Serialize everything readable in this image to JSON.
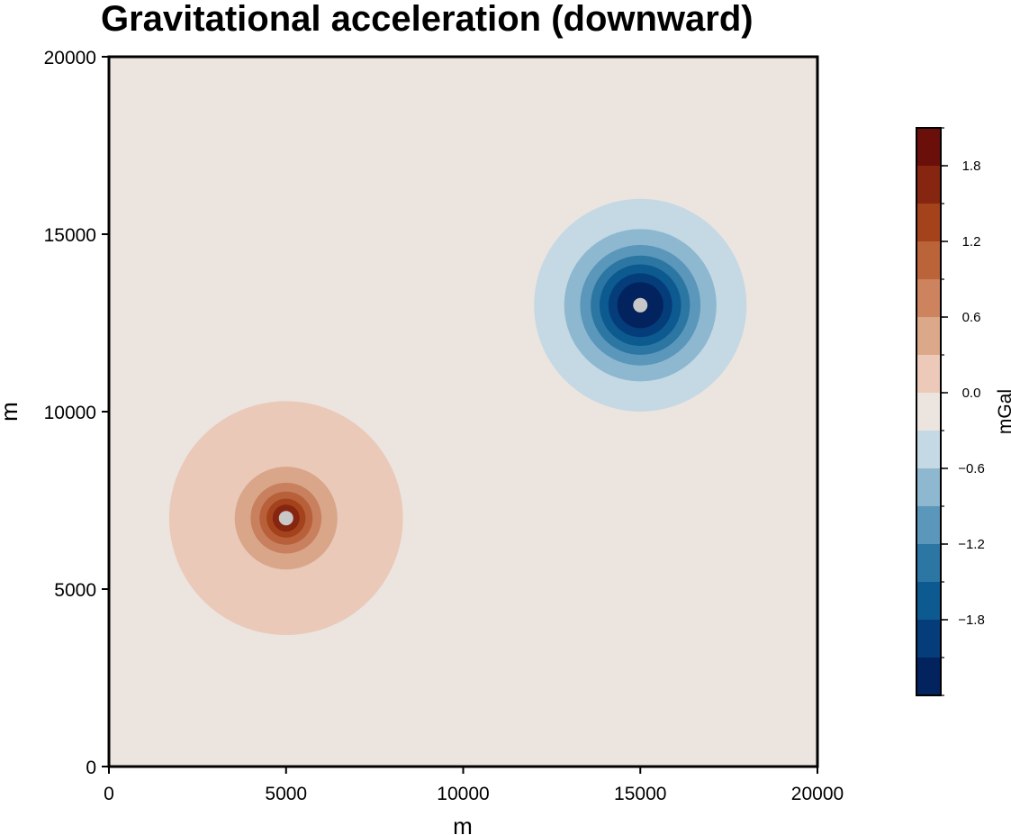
{
  "chart_data": {
    "type": "heatmap",
    "title": "Gravitational acceleration (downward)",
    "xlabel": "m",
    "ylabel": "m",
    "xlim": [
      0,
      20000
    ],
    "ylim": [
      0,
      20000
    ],
    "x_ticks": [
      0,
      5000,
      10000,
      15000,
      20000
    ],
    "y_ticks": [
      0,
      5000,
      10000,
      15000,
      20000
    ],
    "x_tick_labels": [
      "0",
      "5000",
      "10000",
      "15000",
      "20000"
    ],
    "y_tick_labels": [
      "0",
      "5000",
      "10000",
      "15000",
      "20000"
    ],
    "background_color": "#ece4df",
    "anomalies": [
      {
        "center": [
          5000,
          7000
        ],
        "sign": "positive",
        "peak_marker_color": "#c8c8c8",
        "contour_rings": [
          {
            "radius": 3300,
            "color": "#eac9b8"
          },
          {
            "radius": 1450,
            "color": "#d9a68a"
          },
          {
            "radius": 1000,
            "color": "#c8805e"
          },
          {
            "radius": 750,
            "color": "#b8603a"
          },
          {
            "radius": 550,
            "color": "#a4421c"
          },
          {
            "radius": 380,
            "color": "#862510"
          }
        ]
      },
      {
        "center": [
          15000,
          13000
        ],
        "sign": "negative",
        "peak_marker_color": "#c8c8c8",
        "contour_rings": [
          {
            "radius": 3000,
            "color": "#c4d9e4"
          },
          {
            "radius": 2150,
            "color": "#8eb8d0"
          },
          {
            "radius": 1700,
            "color": "#5a97ba"
          },
          {
            "radius": 1400,
            "color": "#2b76a2"
          },
          {
            "radius": 1150,
            "color": "#0c5a8f"
          },
          {
            "radius": 900,
            "color": "#053d7a"
          },
          {
            "radius": 650,
            "color": "#02235e"
          }
        ]
      }
    ],
    "colorbar": {
      "label": "mGal",
      "range": [
        -2.4,
        2.1
      ],
      "tick_values": [
        -1.8,
        -1.2,
        -0.6,
        0.0,
        0.6,
        1.2,
        1.8
      ],
      "tick_labels": [
        "−1.8",
        "−1.2",
        "−0.6",
        "0.0",
        "0.6",
        "1.2",
        "1.8"
      ],
      "segments": [
        {
          "from": 1.8,
          "to": 2.1,
          "color": "#6a0f0a"
        },
        {
          "from": 1.5,
          "to": 1.8,
          "color": "#862510"
        },
        {
          "from": 1.2,
          "to": 1.5,
          "color": "#a4421c"
        },
        {
          "from": 0.9,
          "to": 1.2,
          "color": "#bb6339"
        },
        {
          "from": 0.6,
          "to": 0.9,
          "color": "#cc835e"
        },
        {
          "from": 0.3,
          "to": 0.6,
          "color": "#dba88a"
        },
        {
          "from": 0.0,
          "to": 0.3,
          "color": "#ecc9b8"
        },
        {
          "from": -0.3,
          "to": 0.0,
          "color": "#ece4df"
        },
        {
          "from": -0.6,
          "to": -0.3,
          "color": "#c4d9e4"
        },
        {
          "from": -0.9,
          "to": -0.6,
          "color": "#8eb8d0"
        },
        {
          "from": -1.2,
          "to": -0.9,
          "color": "#5a97ba"
        },
        {
          "from": -1.5,
          "to": -1.2,
          "color": "#2b76a2"
        },
        {
          "from": -1.8,
          "to": -1.5,
          "color": "#0c5a8f"
        },
        {
          "from": -2.1,
          "to": -1.8,
          "color": "#053d7a"
        },
        {
          "from": -2.4,
          "to": -2.1,
          "color": "#02235e"
        }
      ]
    }
  }
}
